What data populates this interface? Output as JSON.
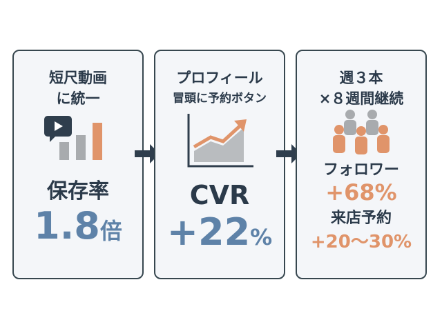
{
  "cards": [
    {
      "title": [
        "短尺動画",
        "に統一"
      ],
      "metrics": [
        {
          "label": "保存率",
          "value": "1.8",
          "unit": "倍"
        }
      ]
    },
    {
      "title": [
        "プロフィール",
        "冒頭に予約ボタン"
      ],
      "metrics": [
        {
          "label": "CVR",
          "value": "+22",
          "unit": "%"
        }
      ]
    },
    {
      "title": [
        "週３本",
        "×８週間継続"
      ],
      "metrics": [
        {
          "label": "フォロワー",
          "value": "+68%"
        },
        {
          "label": "来店予約",
          "value": "+20〜30%"
        }
      ]
    }
  ]
}
